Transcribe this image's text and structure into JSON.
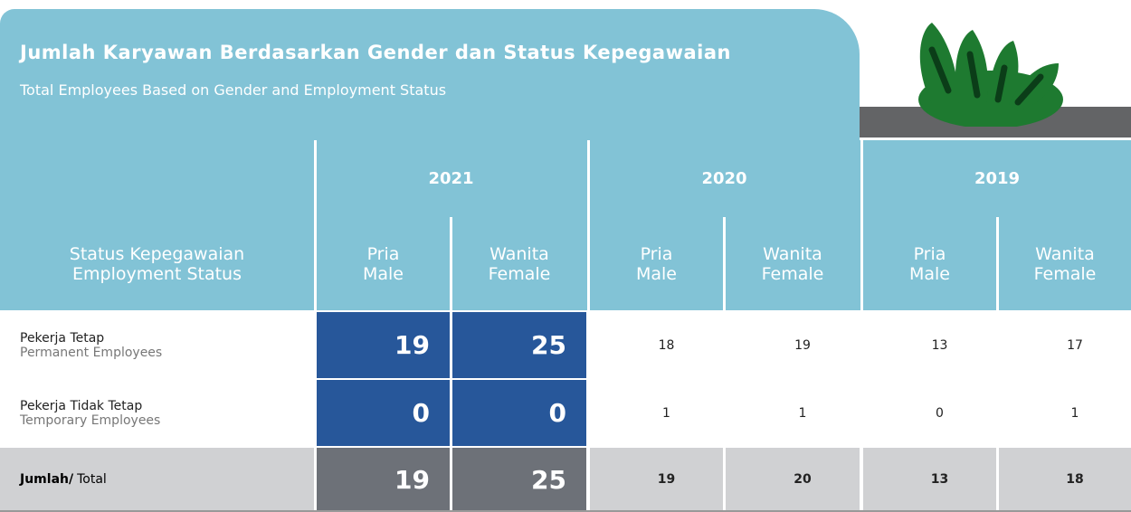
{
  "title": "Jumlah Karyawan Berdasarkan Gender dan Status Kepegawaian",
  "subtitle": "Total Employees Based on Gender and Employment Status",
  "table": {
    "label_header": [
      "Status Kepegawaian",
      "Employment Status"
    ],
    "years": [
      "2021",
      "2020",
      "2019"
    ],
    "columns": [
      {
        "id": "Pria",
        "en": "Male"
      },
      {
        "id": "Wanita",
        "en": "Female"
      },
      {
        "id": "Pria",
        "en": "Male"
      },
      {
        "id": "Wanita",
        "en": "Female"
      },
      {
        "id": "Pria",
        "en": "Male"
      },
      {
        "id": "Wanita",
        "en": "Female"
      }
    ],
    "rows": [
      {
        "label": "Pekerja Tetap",
        "label_en": "Permanent Employees",
        "values": [
          19,
          25,
          18,
          19,
          13,
          17
        ]
      },
      {
        "label": "Pekerja Tidak Tetap",
        "label_en": "Temporary Employees",
        "values": [
          0,
          0,
          1,
          1,
          0,
          1
        ]
      }
    ],
    "total": {
      "label": "Jumlah/",
      "label_en": "Total",
      "values": [
        19,
        25,
        19,
        20,
        13,
        18
      ]
    }
  }
}
